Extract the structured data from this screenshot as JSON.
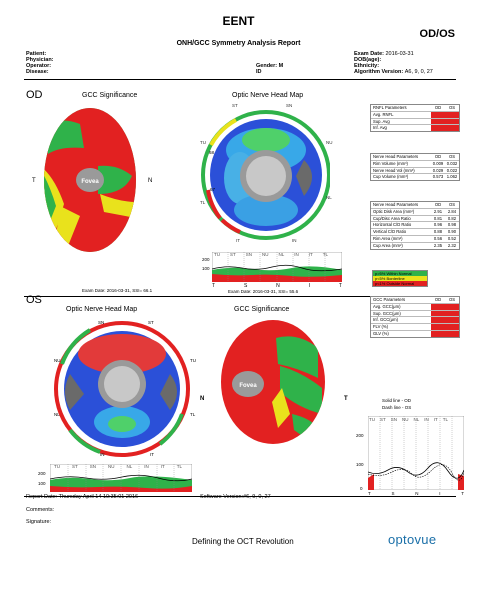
{
  "header": {
    "title": "EENT",
    "eye": "OD/OS",
    "report_name": "ONH/GCC Symmetry Analysis Report"
  },
  "patient_info": {
    "patient_label": "Patient:",
    "physician_label": "Physician:",
    "operator_label": "Operator:",
    "disease_label": "Disease:",
    "gender_label": "Gender:",
    "gender_value": "M",
    "id_label": "ID",
    "exam_date_label": "Exam Date:",
    "exam_date_value": "2016-03-31",
    "dob_label": "DOB(age):",
    "ethnicity_label": "Ethnicity:",
    "algorithm_label": "Algorithm Version:",
    "algorithm_value": "A6, 9, 0, 27"
  },
  "od": {
    "eye_label": "OD",
    "gcc_title": "GCC Significance",
    "onh_title": "Optic Nerve Head Map",
    "fovea": "Fovea",
    "T": "T",
    "N": "N",
    "sectors": [
      "ST",
      "SN",
      "NU",
      "NL",
      "IN",
      "IT",
      "TL",
      "TU"
    ],
    "sector_values": [
      "",
      "",
      "",
      "",
      "",
      "",
      "67",
      "68"
    ],
    "exam_left": "Exam Date: 2016-03-31, SSI= 66.1",
    "exam_right": "Exam Date: 2016-03-31, SSI= 55.6",
    "tsnit_axis": [
      "T",
      "S",
      "N",
      "I",
      "T"
    ],
    "tsnit_y": [
      "200",
      "100",
      "0"
    ],
    "tsnit_sectors": [
      "TU",
      "ST",
      "SN",
      "NU",
      "NL",
      "IN",
      "IT",
      "TL"
    ]
  },
  "os": {
    "eye_label": "OS",
    "onh_title": "Optic Nerve Head Map",
    "gcc_title": "GCC Significance",
    "fovea": "Fovea",
    "sectors": [
      "SN",
      "ST",
      "NU",
      "TU",
      "NL",
      "TL",
      "IN",
      "IT"
    ],
    "N": "N",
    "T": "T",
    "tsnit_y": [
      "200",
      "100",
      "0"
    ],
    "tsnit_sectors": [
      "TU",
      "ST",
      "SN",
      "NU",
      "NL",
      "IN",
      "IT",
      "TL"
    ],
    "compare_y": [
      "200",
      "100",
      "0"
    ],
    "compare_sectors": [
      "TU",
      "ST",
      "SN",
      "NU",
      "NL",
      "IN",
      "IT",
      "TL"
    ],
    "compare_axis": [
      "T",
      "S",
      "N",
      "I",
      "T"
    ]
  },
  "rnfl_table": {
    "header": [
      "RNFL Parameters",
      "OD",
      "OS"
    ],
    "rows": [
      [
        "Avg. RNFL",
        "",
        ""
      ],
      [
        "Sup. Avg",
        "",
        ""
      ],
      [
        "Inf. Avg",
        "",
        ""
      ]
    ]
  },
  "nerve_head_table": {
    "header": [
      "Nerve Head Parameters",
      "OD",
      "OS"
    ],
    "rows": [
      [
        "Rim Volume (mm³)",
        "0.009",
        "0.032"
      ],
      [
        "Nerve Head Vol (mm³)",
        "0.029",
        "0.022"
      ],
      [
        "Cup Volume (mm³)",
        "0.573",
        "1.062"
      ]
    ]
  },
  "disc_table": {
    "header": [
      "Nerve Head Parameters",
      "OD",
      "OS"
    ],
    "rows": [
      [
        "Optic Disk Area (mm²)",
        "2.91",
        "2.84"
      ],
      [
        "Cup/Disc Area Ratio",
        "0.81",
        "0.82"
      ],
      [
        "Horizontal C/D Ratio",
        "0.96",
        "0.98"
      ],
      [
        "Vertical C/D Ratio",
        "0.88",
        "0.90"
      ],
      [
        "Rim Area (mm²)",
        "0.56",
        "0.52"
      ],
      [
        "Cup Area (mm²)",
        "2.35",
        "2.32"
      ]
    ]
  },
  "legend": {
    "items": [
      "p>5% Within Normal",
      "p<5% Borderline",
      "p<1% Outside Normal"
    ],
    "colors": [
      "#2fb24a",
      "#e9e21c",
      "#e22121"
    ]
  },
  "gcc_table": {
    "header": [
      "GCC Parameters",
      "OD",
      "OS"
    ],
    "rows": [
      [
        "Avg. GCC(μm)",
        "",
        ""
      ],
      [
        "Sup. GCC(μm)",
        "",
        ""
      ],
      [
        "Inf. GCC(μm)",
        "",
        ""
      ],
      [
        "FLV (%)",
        "",
        ""
      ],
      [
        "GLV (%)",
        "",
        ""
      ]
    ]
  },
  "line_legend": {
    "solid": "Solid line - OD",
    "dash": "Dash line - OS"
  },
  "footer": {
    "report_date": "Report Date: Thursday April 14 10:35:01 2016",
    "software": "Software Version:#6, 9, 0, 27",
    "comments": "Comments:",
    "signature": "Signature:",
    "tagline": "Defining the OCT Revolution",
    "logo": "optovue"
  }
}
